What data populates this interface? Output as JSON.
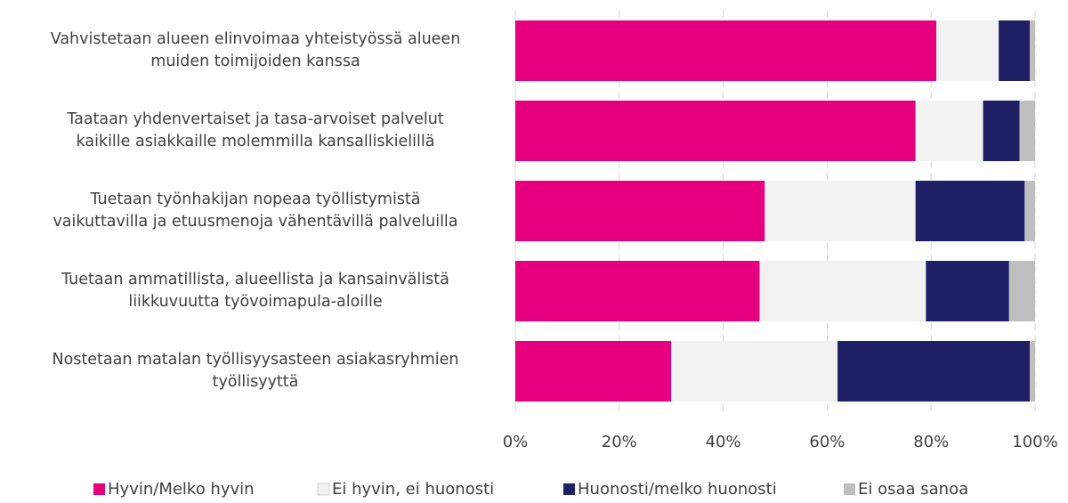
{
  "chart_data": {
    "type": "stacked_barh",
    "categories": [
      "Vahvistetaan alueen elinvoimaa yhteistyössä alueen\nmuiden toimijoiden kanssa",
      "Taataan yhdenvertaiset ja tasa-arvoiset palvelut\nkaikille asiakkaille molemmilla kansalliskielillä",
      "Tuetaan työnhakijan nopeaa työllistymistä\nvaikuttavilla ja etuusmenoja vähentävillä palveluilla",
      "Tuetaan ammatillista, alueellista ja kansainvälistä\nliikkuvuutta työvoimapula-aloille",
      "Nostetaan matalan työllisyysasteen asiakasryhmien\ntyöllisyyttä"
    ],
    "series": [
      {
        "name": "Hyvin/Melko hyvin",
        "color": "#e6007e",
        "values": [
          81,
          77,
          48,
          47,
          30
        ]
      },
      {
        "name": "Ei hyvin, ei huonosti",
        "color": "#f2f2f2",
        "values": [
          12,
          13,
          29,
          32,
          32
        ]
      },
      {
        "name": "Huonosti/melko huonosti",
        "color": "#1f1f66",
        "values": [
          6,
          7,
          21,
          16,
          37
        ]
      },
      {
        "name": "Ei osaa sanoa",
        "color": "#bfbfbf",
        "values": [
          1,
          3,
          2,
          5,
          1
        ]
      }
    ],
    "xlim": [
      0,
      100
    ],
    "xticks": [
      {
        "value": 0,
        "label": "0%"
      },
      {
        "value": 20,
        "label": "20%"
      },
      {
        "value": 40,
        "label": "40%"
      },
      {
        "value": 60,
        "label": "60%"
      },
      {
        "value": 80,
        "label": "80%"
      },
      {
        "value": 100,
        "label": "100%"
      }
    ],
    "grid": true,
    "legend": "bottom"
  }
}
